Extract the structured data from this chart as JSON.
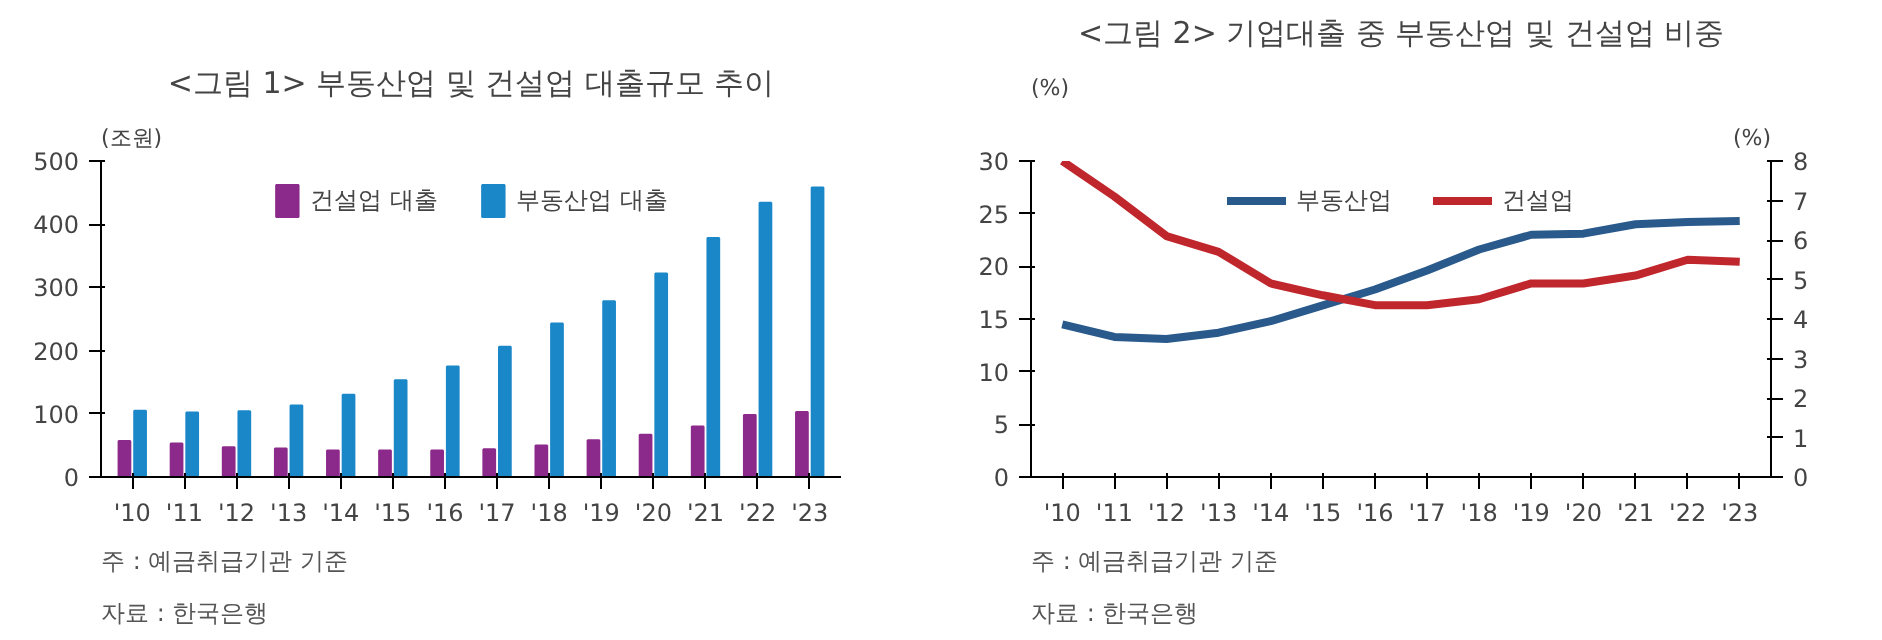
{
  "chart_data": [
    {
      "type": "bar",
      "title": "<그림 1> 부동산업 및 건설업 대출규모 추이",
      "ylabel": "(조원)",
      "categories": [
        "'10",
        "'11",
        "'12",
        "'13",
        "'14",
        "'15",
        "'16",
        "'17",
        "'18",
        "'19",
        "'20",
        "'21",
        "'22",
        "'23"
      ],
      "series": [
        {
          "name": "건설업 대출",
          "color": "#8b2a8b",
          "values": [
            57,
            53,
            47,
            45,
            42,
            42,
            42,
            44,
            50,
            58,
            67,
            80,
            98,
            103
          ]
        },
        {
          "name": "부동산업 대출",
          "color": "#1a87c8",
          "values": [
            105,
            102,
            104,
            113,
            130,
            153,
            175,
            206,
            243,
            278,
            322,
            378,
            434,
            458
          ]
        }
      ],
      "ylim": [
        0,
        500
      ],
      "yticks": [
        0,
        100,
        200,
        300,
        400,
        500
      ],
      "grid": false,
      "legend": "top",
      "annotations": [
        "주 : 예금취급기관 기준",
        "자료 : 한국은행"
      ]
    },
    {
      "type": "line",
      "title": "<그림 2> 기업대출 중 부동산업 및 건설업 비중",
      "ylabel": "(%)",
      "y2label": "(%)",
      "categories": [
        "'10",
        "'11",
        "'12",
        "'13",
        "'14",
        "'15",
        "'16",
        "'17",
        "'18",
        "'19",
        "'20",
        "'21",
        "'22",
        "'23"
      ],
      "series": [
        {
          "name": "부동산업",
          "color": "#2a5a8c",
          "values": [
            14.5,
            13.3,
            13.1,
            13.7,
            14.8,
            16.3,
            17.8,
            19.6,
            21.6,
            23.0,
            23.1,
            24.0,
            24.2,
            24.3
          ]
        },
        {
          "name": "건설업",
          "color": "#c0272d",
          "axis": "y2",
          "values": [
            8.0,
            7.1,
            6.1,
            5.7,
            4.9,
            4.6,
            4.35,
            4.35,
            4.5,
            4.9,
            4.9,
            5.1,
            5.5,
            5.45
          ]
        }
      ],
      "ylim": [
        0,
        30
      ],
      "yticks": [
        0,
        5,
        10,
        15,
        20,
        25,
        30
      ],
      "y2lim": [
        0,
        8
      ],
      "y2ticks": [
        0,
        1,
        2,
        3,
        4,
        5,
        6,
        7,
        8
      ],
      "grid": false,
      "legend": "top",
      "line_style": "solid",
      "marker": "none",
      "annotations": [
        "주 : 예금취급기관 기준",
        "자료 : 한국은행"
      ]
    }
  ]
}
